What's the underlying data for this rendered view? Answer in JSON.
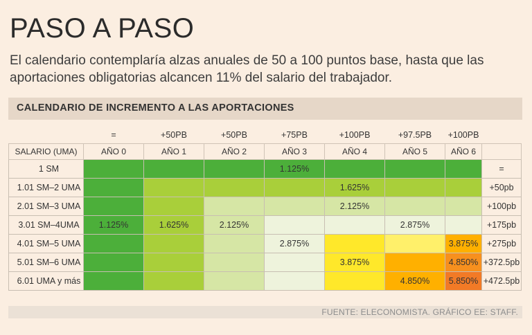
{
  "header": {
    "title": "PASO A PASO",
    "subtitle": "El calendario contemplaría alzas anuales de 50 a 100 puntos base, hasta que las aportaciones obligatorias alcancen 11% del salario del trabajador."
  },
  "banner": {
    "label": "CALENDARIO DE INCREMENTO A LAS APORTACIONES"
  },
  "source": "FUENTE: ELECONOMISTA. GRÁFICO EE: STAFF.",
  "colors": {
    "dark_green": "#4caf3a",
    "lime": "#a9cf3a",
    "pale_green": "#d6e6a5",
    "very_pale": "#eef3dc",
    "yellow": "#ffe82a",
    "light_yellow": "#fff06a",
    "orange": "#ffb000",
    "dark_orange": "#f7901e",
    "red_orange": "#f27a26"
  },
  "chart_data": {
    "type": "table",
    "title": "CALENDARIO DE INCREMENTO A LAS APORTACIONES",
    "corner_label": "SALARIO (UMA)",
    "increments_top": [
      "=",
      "+50PB",
      "+50PB",
      "+75PB",
      "+100PB",
      "+97.5PB",
      "+100PB"
    ],
    "years": [
      "AÑO 0",
      "AÑO 1",
      "AÑO 2",
      "AÑO 3",
      "AÑO 4",
      "AÑO 5",
      "AÑO 6"
    ],
    "rows": [
      {
        "label": "1 SM",
        "increment": "=",
        "cells": [
          {
            "color": "dark_green",
            "value": ""
          },
          {
            "color": "dark_green",
            "value": ""
          },
          {
            "color": "dark_green",
            "value": ""
          },
          {
            "color": "dark_green",
            "value": "1.125%"
          },
          {
            "color": "dark_green",
            "value": ""
          },
          {
            "color": "dark_green",
            "value": ""
          },
          {
            "color": "dark_green",
            "value": ""
          }
        ]
      },
      {
        "label": "1.01 SM–2 UMA",
        "increment": "+50pb",
        "cells": [
          {
            "color": "dark_green",
            "value": ""
          },
          {
            "color": "lime",
            "value": ""
          },
          {
            "color": "lime",
            "value": ""
          },
          {
            "color": "lime",
            "value": ""
          },
          {
            "color": "lime",
            "value": "1.625%"
          },
          {
            "color": "lime",
            "value": ""
          },
          {
            "color": "lime",
            "value": ""
          }
        ]
      },
      {
        "label": "2.01 SM–3 UMA",
        "increment": "+100pb",
        "cells": [
          {
            "color": "dark_green",
            "value": ""
          },
          {
            "color": "lime",
            "value": ""
          },
          {
            "color": "pale_green",
            "value": ""
          },
          {
            "color": "pale_green",
            "value": ""
          },
          {
            "color": "pale_green",
            "value": "2.125%"
          },
          {
            "color": "pale_green",
            "value": ""
          },
          {
            "color": "pale_green",
            "value": ""
          }
        ]
      },
      {
        "label": "3.01 SM–4UMA",
        "increment": "+175pb",
        "cells": [
          {
            "color": "dark_green",
            "value": "1.125%"
          },
          {
            "color": "lime",
            "value": "1.625%"
          },
          {
            "color": "pale_green",
            "value": "2.125%"
          },
          {
            "color": "very_pale",
            "value": ""
          },
          {
            "color": "very_pale",
            "value": ""
          },
          {
            "color": "very_pale",
            "value": "2.875%"
          },
          {
            "color": "very_pale",
            "value": ""
          }
        ]
      },
      {
        "label": "4.01 SM–5 UMA",
        "increment": "+275pb",
        "cells": [
          {
            "color": "dark_green",
            "value": ""
          },
          {
            "color": "lime",
            "value": ""
          },
          {
            "color": "pale_green",
            "value": ""
          },
          {
            "color": "very_pale",
            "value": "2.875%"
          },
          {
            "color": "yellow",
            "value": ""
          },
          {
            "color": "light_yellow",
            "value": ""
          },
          {
            "color": "orange",
            "value": "3.875%"
          }
        ]
      },
      {
        "label": "5.01 SM–6 UMA",
        "increment": "+372.5pb",
        "cells": [
          {
            "color": "dark_green",
            "value": ""
          },
          {
            "color": "lime",
            "value": ""
          },
          {
            "color": "pale_green",
            "value": ""
          },
          {
            "color": "very_pale",
            "value": ""
          },
          {
            "color": "yellow",
            "value": "3.875%"
          },
          {
            "color": "orange",
            "value": ""
          },
          {
            "color": "dark_orange",
            "value": "4.850%"
          }
        ]
      },
      {
        "label": "6.01 UMA y más",
        "increment": "+472.5pb",
        "cells": [
          {
            "color": "dark_green",
            "value": ""
          },
          {
            "color": "lime",
            "value": ""
          },
          {
            "color": "pale_green",
            "value": ""
          },
          {
            "color": "very_pale",
            "value": ""
          },
          {
            "color": "yellow",
            "value": ""
          },
          {
            "color": "orange",
            "value": "4.850%"
          },
          {
            "color": "red_orange",
            "value": "5.850%"
          }
        ]
      }
    ]
  }
}
